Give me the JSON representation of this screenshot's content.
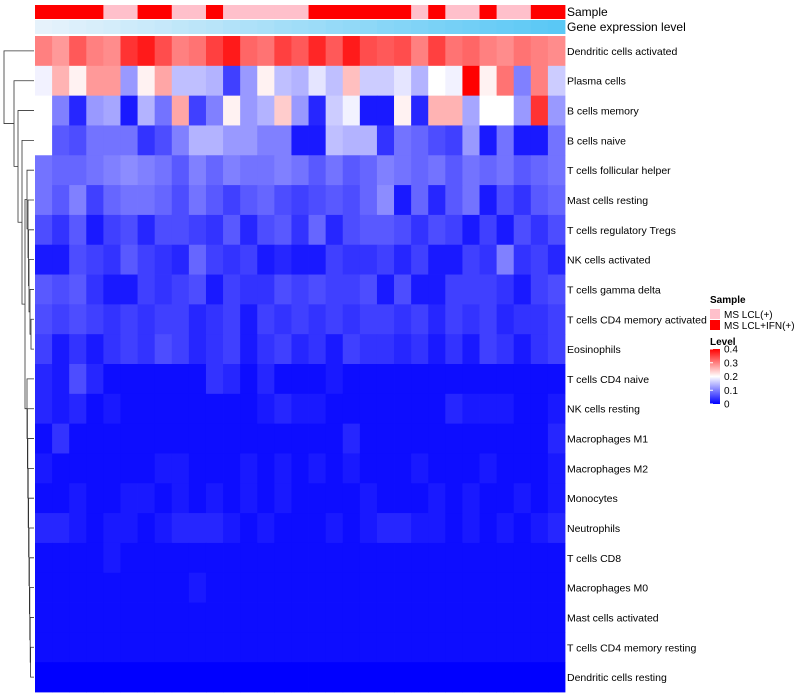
{
  "chart_data": {
    "type": "heatmap",
    "title": "",
    "rows": [
      "Dendritic cells activated",
      "Plasma cells",
      "B cells memory",
      "B cells naive",
      "T cells follicular helper",
      "Mast cells resting",
      "T cells regulatory  Tregs",
      "NK cells activated",
      "T cells gamma delta",
      "T cells CD4 memory activated",
      "Eosinophils",
      "T cells CD4 naive",
      "NK cells resting",
      "Macrophages M1",
      "Macrophages M2",
      "Monocytes",
      "Neutrophils",
      "T cells CD8",
      "Macrophages M0",
      "Mast cells activated",
      "T cells CD4 memory resting",
      "Dendritic cells resting"
    ],
    "n_columns": 31,
    "values": [
      [
        0.3,
        0.28,
        0.33,
        0.3,
        0.29,
        0.36,
        0.38,
        0.34,
        0.3,
        0.31,
        0.35,
        0.38,
        0.32,
        0.31,
        0.35,
        0.33,
        0.37,
        0.33,
        0.38,
        0.34,
        0.33,
        0.34,
        0.3,
        0.35,
        0.31,
        0.32,
        0.3,
        0.29,
        0.31,
        0.3,
        0.29
      ],
      [
        0.19,
        0.26,
        0.21,
        0.28,
        0.28,
        0.12,
        0.21,
        0.27,
        0.15,
        0.15,
        0.14,
        0.05,
        0.12,
        0.21,
        0.15,
        0.14,
        0.18,
        0.15,
        0.25,
        0.16,
        0.16,
        0.18,
        0.14,
        0.2,
        0.19,
        0.4,
        0.21,
        0.31,
        0.1,
        0.3,
        0.16
      ],
      [
        0.2,
        0.1,
        0.03,
        0.12,
        0.13,
        0.02,
        0.14,
        0.09,
        0.27,
        0.05,
        0.1,
        0.21,
        0.12,
        0.14,
        0.24,
        0.12,
        0.03,
        0.16,
        0.19,
        0.02,
        0.02,
        0.21,
        0.03,
        0.26,
        0.26,
        0.13,
        0.2,
        0.2,
        0.12,
        0.36,
        0.12
      ],
      [
        0.2,
        0.07,
        0.06,
        0.09,
        0.09,
        0.09,
        0.04,
        0.06,
        0.1,
        0.14,
        0.14,
        0.12,
        0.12,
        0.1,
        0.1,
        0.02,
        0.02,
        0.15,
        0.14,
        0.14,
        0.04,
        0.09,
        0.08,
        0.06,
        0.05,
        0.12,
        0.02,
        0.09,
        0.02,
        0.02,
        0.09
      ],
      [
        0.09,
        0.08,
        0.08,
        0.09,
        0.1,
        0.11,
        0.1,
        0.09,
        0.07,
        0.1,
        0.08,
        0.1,
        0.09,
        0.09,
        0.1,
        0.09,
        0.07,
        0.09,
        0.07,
        0.08,
        0.1,
        0.09,
        0.08,
        0.09,
        0.07,
        0.09,
        0.08,
        0.09,
        0.07,
        0.08,
        0.09
      ],
      [
        0.09,
        0.07,
        0.1,
        0.05,
        0.08,
        0.09,
        0.09,
        0.08,
        0.06,
        0.09,
        0.07,
        0.05,
        0.07,
        0.08,
        0.06,
        0.05,
        0.06,
        0.07,
        0.06,
        0.08,
        0.11,
        0.02,
        0.08,
        0.03,
        0.07,
        0.09,
        0.02,
        0.06,
        0.04,
        0.07,
        0.08
      ],
      [
        0.06,
        0.04,
        0.07,
        0.02,
        0.05,
        0.06,
        0.03,
        0.06,
        0.06,
        0.05,
        0.04,
        0.07,
        0.03,
        0.06,
        0.07,
        0.04,
        0.08,
        0.03,
        0.06,
        0.07,
        0.07,
        0.06,
        0.04,
        0.06,
        0.05,
        0.02,
        0.05,
        0.02,
        0.06,
        0.04,
        0.06
      ],
      [
        0.02,
        0.02,
        0.06,
        0.05,
        0.04,
        0.07,
        0.05,
        0.04,
        0.03,
        0.08,
        0.05,
        0.04,
        0.05,
        0.02,
        0.03,
        0.02,
        0.02,
        0.05,
        0.04,
        0.04,
        0.05,
        0.03,
        0.05,
        0.02,
        0.02,
        0.05,
        0.04,
        0.1,
        0.04,
        0.05,
        0.03
      ],
      [
        0.07,
        0.06,
        0.07,
        0.04,
        0.02,
        0.02,
        0.05,
        0.04,
        0.05,
        0.06,
        0.02,
        0.05,
        0.04,
        0.04,
        0.06,
        0.05,
        0.06,
        0.05,
        0.05,
        0.06,
        0.02,
        0.06,
        0.02,
        0.02,
        0.05,
        0.05,
        0.05,
        0.04,
        0.02,
        0.05,
        0.06
      ],
      [
        0.06,
        0.05,
        0.06,
        0.05,
        0.04,
        0.05,
        0.04,
        0.05,
        0.05,
        0.03,
        0.04,
        0.05,
        0.02,
        0.05,
        0.04,
        0.05,
        0.04,
        0.05,
        0.04,
        0.05,
        0.05,
        0.04,
        0.05,
        0.03,
        0.05,
        0.04,
        0.05,
        0.03,
        0.04,
        0.04,
        0.05
      ],
      [
        0.05,
        0.02,
        0.04,
        0.02,
        0.04,
        0.05,
        0.04,
        0.06,
        0.05,
        0.03,
        0.04,
        0.05,
        0.02,
        0.04,
        0.05,
        0.03,
        0.04,
        0.02,
        0.05,
        0.04,
        0.04,
        0.03,
        0.04,
        0.02,
        0.04,
        0.02,
        0.05,
        0.04,
        0.02,
        0.04,
        0.05
      ],
      [
        0.03,
        0.02,
        0.06,
        0.03,
        0.01,
        0.01,
        0.01,
        0.01,
        0.01,
        0.01,
        0.04,
        0.03,
        0.01,
        0.03,
        0.01,
        0.01,
        0.01,
        0.02,
        0.01,
        0.01,
        0.01,
        0.01,
        0.01,
        0.01,
        0.01,
        0.01,
        0.01,
        0.01,
        0.01,
        0.01,
        0.01
      ],
      [
        0.03,
        0.02,
        0.03,
        0.01,
        0.02,
        0.01,
        0.01,
        0.01,
        0.01,
        0.01,
        0.01,
        0.01,
        0.01,
        0.02,
        0.03,
        0.02,
        0.02,
        0.01,
        0.01,
        0.01,
        0.01,
        0.01,
        0.01,
        0.01,
        0.03,
        0.02,
        0.02,
        0.02,
        0.01,
        0.01,
        0.02
      ],
      [
        0.01,
        0.04,
        0.01,
        0.01,
        0.01,
        0.01,
        0.01,
        0.01,
        0.01,
        0.01,
        0.01,
        0.01,
        0.01,
        0.01,
        0.01,
        0.01,
        0.01,
        0.01,
        0.03,
        0.01,
        0.01,
        0.01,
        0.01,
        0.01,
        0.01,
        0.01,
        0.01,
        0.01,
        0.01,
        0.01,
        0.03
      ],
      [
        0.02,
        0.01,
        0.01,
        0.01,
        0.01,
        0.01,
        0.01,
        0.02,
        0.02,
        0.01,
        0.01,
        0.01,
        0.02,
        0.01,
        0.02,
        0.01,
        0.02,
        0.01,
        0.02,
        0.01,
        0.01,
        0.01,
        0.02,
        0.01,
        0.01,
        0.01,
        0.02,
        0.01,
        0.01,
        0.01,
        0.02
      ],
      [
        0.01,
        0.01,
        0.02,
        0.01,
        0.01,
        0.02,
        0.02,
        0.01,
        0.02,
        0.01,
        0.02,
        0.01,
        0.02,
        0.01,
        0.02,
        0.01,
        0.01,
        0.01,
        0.01,
        0.02,
        0.01,
        0.01,
        0.01,
        0.02,
        0.01,
        0.02,
        0.01,
        0.01,
        0.02,
        0.01,
        0.02
      ],
      [
        0.03,
        0.03,
        0.02,
        0.01,
        0.02,
        0.02,
        0.01,
        0.02,
        0.03,
        0.03,
        0.03,
        0.02,
        0.01,
        0.02,
        0.01,
        0.01,
        0.01,
        0.02,
        0.01,
        0.02,
        0.03,
        0.03,
        0.02,
        0.02,
        0.01,
        0.02,
        0.01,
        0.02,
        0.01,
        0.02,
        0.03
      ],
      [
        0.01,
        0.01,
        0.01,
        0.01,
        0.02,
        0.01,
        0.01,
        0.01,
        0.01,
        0.01,
        0.01,
        0.01,
        0.01,
        0.01,
        0.01,
        0.01,
        0.01,
        0.01,
        0.01,
        0.01,
        0.01,
        0.01,
        0.01,
        0.01,
        0.01,
        0.01,
        0.01,
        0.01,
        0.01,
        0.01,
        0.01
      ],
      [
        0.01,
        0.01,
        0.01,
        0.01,
        0.01,
        0.01,
        0.01,
        0.01,
        0.01,
        0.02,
        0.01,
        0.01,
        0.01,
        0.01,
        0.01,
        0.01,
        0.01,
        0.01,
        0.01,
        0.01,
        0.01,
        0.01,
        0.01,
        0.01,
        0.01,
        0.01,
        0.01,
        0.01,
        0.01,
        0.01,
        0.01
      ],
      [
        0.01,
        0.01,
        0.01,
        0.01,
        0.01,
        0.01,
        0.01,
        0.01,
        0.01,
        0.01,
        0.01,
        0.01,
        0.01,
        0.01,
        0.01,
        0.01,
        0.01,
        0.01,
        0.01,
        0.01,
        0.01,
        0.01,
        0.01,
        0.01,
        0.01,
        0.01,
        0.01,
        0.01,
        0.01,
        0.01,
        0.01
      ],
      [
        0.01,
        0.01,
        0.01,
        0.01,
        0.01,
        0.01,
        0.01,
        0.01,
        0.01,
        0.01,
        0.01,
        0.01,
        0.01,
        0.01,
        0.01,
        0.01,
        0.01,
        0.01,
        0.01,
        0.01,
        0.01,
        0.01,
        0.01,
        0.01,
        0.01,
        0.01,
        0.01,
        0.01,
        0.01,
        0.01,
        0.01
      ],
      [
        0.0,
        0.0,
        0.0,
        0.0,
        0.0,
        0.0,
        0.0,
        0.0,
        0.0,
        0.0,
        0.0,
        0.0,
        0.0,
        0.0,
        0.0,
        0.0,
        0.0,
        0.0,
        0.0,
        0.0,
        0.0,
        0.0,
        0.0,
        0.0,
        0.0,
        0.0,
        0.0,
        0.0,
        0.0,
        0.0,
        0.0
      ]
    ],
    "annotations": {
      "sample": {
        "label": "Sample",
        "values": [
          "MS LCL+IFN(+)",
          "MS LCL+IFN(+)",
          "MS LCL+IFN(+)",
          "MS LCL+IFN(+)",
          "MS LCL(+)",
          "MS LCL(+)",
          "MS LCL+IFN(+)",
          "MS LCL+IFN(+)",
          "MS LCL(+)",
          "MS LCL(+)",
          "MS LCL+IFN(+)",
          "MS LCL(+)",
          "MS LCL(+)",
          "MS LCL(+)",
          "MS LCL(+)",
          "MS LCL(+)",
          "MS LCL+IFN(+)",
          "MS LCL+IFN(+)",
          "MS LCL+IFN(+)",
          "MS LCL+IFN(+)",
          "MS LCL+IFN(+)",
          "MS LCL+IFN(+)",
          "MS LCL(+)",
          "MS LCL+IFN(+)",
          "MS LCL(+)",
          "MS LCL(+)",
          "MS LCL+IFN(+)",
          "MS LCL(+)",
          "MS LCL(+)",
          "MS LCL+IFN(+)",
          "MS LCL+IFN(+)"
        ]
      },
      "expression": {
        "label": "Gene expression level",
        "values": [
          0.0,
          0.03,
          0.07,
          0.1,
          0.13,
          0.17,
          0.2,
          0.23,
          0.27,
          0.3,
          0.33,
          0.37,
          0.4,
          0.43,
          0.47,
          0.5,
          0.53,
          0.57,
          0.6,
          0.63,
          0.67,
          0.7,
          0.73,
          0.77,
          0.8,
          0.83,
          0.87,
          0.9,
          0.93,
          0.97,
          1.0
        ]
      }
    },
    "legend": {
      "sample_title": "Sample",
      "sample_entries": [
        {
          "label": "MS LCL(+)",
          "color": "#ffc0cb"
        },
        {
          "label": "MS LCL+IFN(+)",
          "color": "#ff0000"
        }
      ],
      "level_title": "Level",
      "level_ticks": [
        "0.4",
        "0.3",
        "0.2",
        "0.1",
        "0"
      ],
      "level_range": [
        0,
        0.4
      ]
    },
    "colors": {
      "low": "#0000ff",
      "mid": "#ffffff",
      "high": "#ff0000",
      "expr_low": "#e6f2fb",
      "expr_high": "#5ac8f5"
    }
  }
}
